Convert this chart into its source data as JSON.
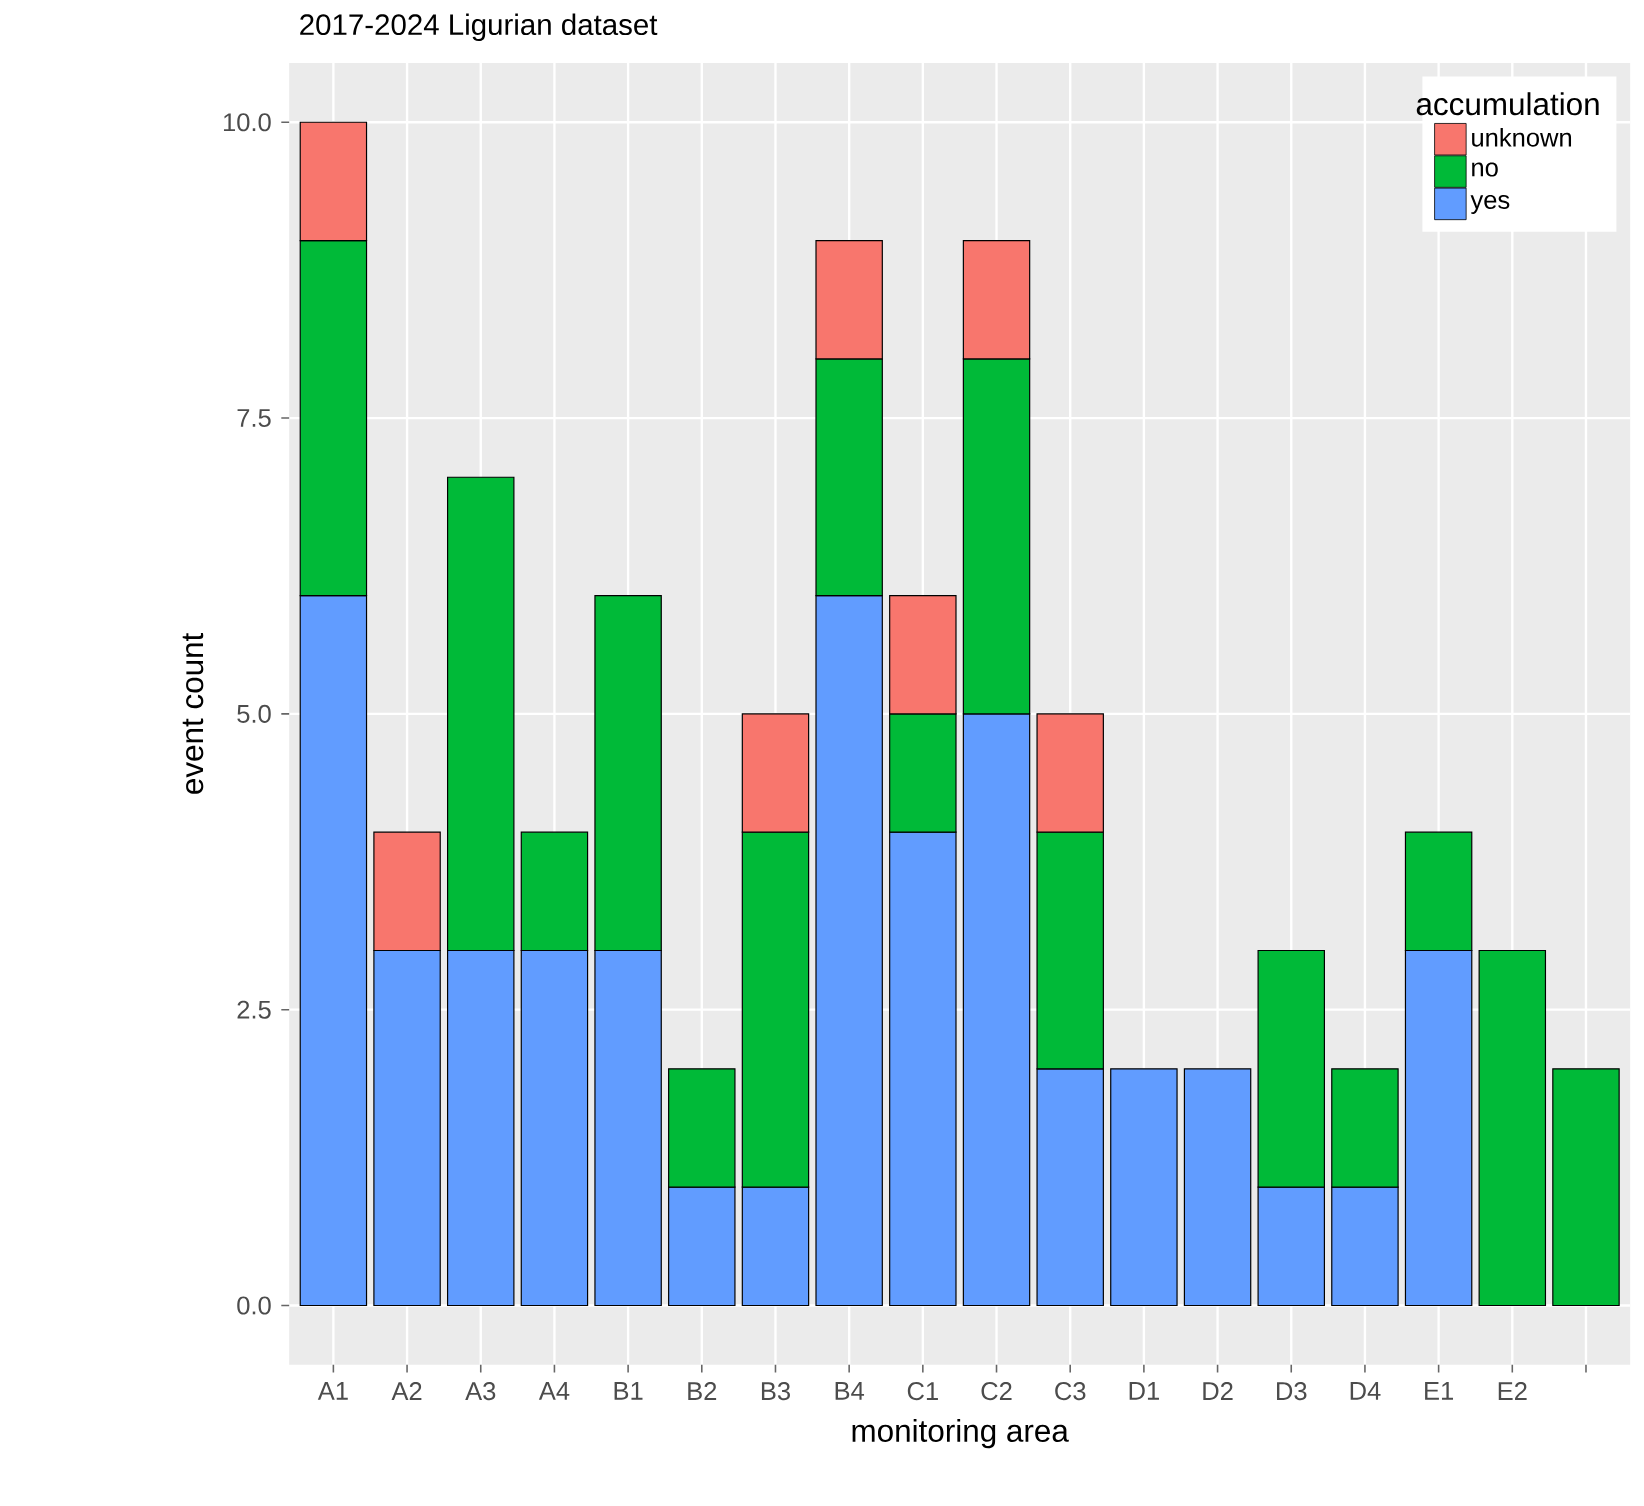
{
  "chart_data": {
    "type": "bar",
    "stacked": true,
    "title": "2017-2024 Ligurian dataset",
    "xlabel": "monitoring area",
    "ylabel": "event count",
    "legend_title": "accumulation",
    "categories": [
      "A1",
      "A2",
      "A3",
      "A4",
      "B1",
      "B2",
      "B3",
      "B4",
      "C1",
      "C2",
      "C3",
      "D1",
      "D2",
      "D3",
      "D4",
      "E1",
      "E2",
      null
    ],
    "series": [
      {
        "name": "yes",
        "color": "#619cff",
        "values": [
          6,
          3,
          3,
          3,
          3,
          1,
          1,
          6,
          4,
          5,
          2,
          2,
          2,
          1,
          1,
          3,
          null,
          null
        ]
      },
      {
        "name": "no",
        "color": "#00ba38",
        "values": [
          3,
          null,
          4,
          1,
          3,
          1,
          3,
          2,
          1,
          3,
          2,
          null,
          null,
          2,
          1,
          1,
          3,
          2
        ]
      },
      {
        "name": "unknown",
        "color": "#f8766d",
        "values": [
          1,
          1,
          null,
          null,
          null,
          null,
          1,
          1,
          1,
          1,
          1,
          null,
          null,
          null,
          null,
          null,
          null,
          null
        ]
      }
    ],
    "ylim": [
      -0.5,
      10.5
    ],
    "yticks": [
      {
        "value": 0,
        "label": "0.0"
      },
      {
        "value": 2.5,
        "label": "2.5"
      },
      {
        "value": 5,
        "label": "5.0"
      },
      {
        "value": 7.5,
        "label": "7.5"
      },
      {
        "value": 10,
        "label": "10.0"
      }
    ],
    "grid": true,
    "legend": "top right"
  }
}
